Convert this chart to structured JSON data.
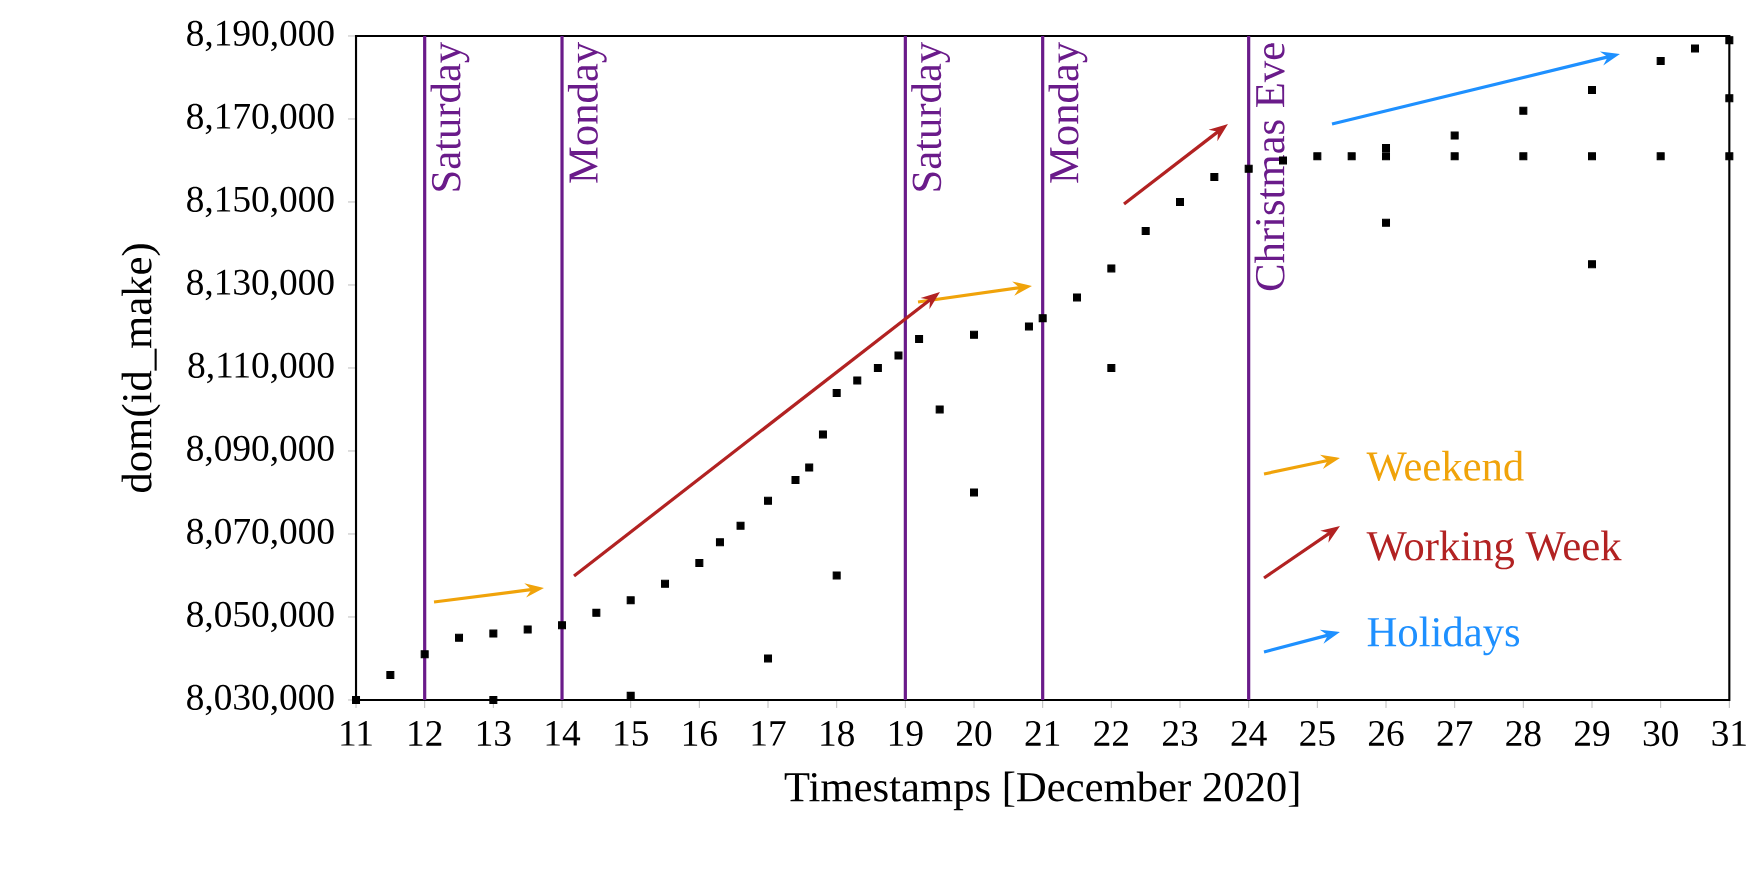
{
  "chart_data": {
    "type": "scatter",
    "xlabel": "Timestamps [December 2020]",
    "ylabel": "dom(id_make)",
    "xlim": [
      11,
      31
    ],
    "ylim": [
      8030000,
      8190000
    ],
    "xticks": [
      11,
      12,
      13,
      14,
      15,
      16,
      17,
      18,
      19,
      20,
      21,
      22,
      23,
      24,
      25,
      26,
      27,
      28,
      29,
      30,
      31
    ],
    "yticks": [
      {
        "value": 8030000,
        "label": "8,030,000"
      },
      {
        "value": 8050000,
        "label": "8,050,000"
      },
      {
        "value": 8070000,
        "label": "8,070,000"
      },
      {
        "value": 8090000,
        "label": "8,090,000"
      },
      {
        "value": 8110000,
        "label": "8,110,000"
      },
      {
        "value": 8130000,
        "label": "8,130,000"
      },
      {
        "value": 8150000,
        "label": "8,150,000"
      },
      {
        "value": 8170000,
        "label": "8,170,000"
      },
      {
        "value": 8190000,
        "label": "8,190,000"
      }
    ],
    "grid": false,
    "marker": "square",
    "annotations": [
      "Weekend",
      "Working Week",
      "Holidays"
    ],
    "ref_lines": [
      {
        "axis": "x",
        "value": 12,
        "label": "Saturday",
        "color": "#6a1b8a"
      },
      {
        "axis": "x",
        "value": 14,
        "label": "Monday",
        "color": "#6a1b8a"
      },
      {
        "axis": "x",
        "value": 19,
        "label": "Saturday",
        "color": "#6a1b8a"
      },
      {
        "axis": "x",
        "value": 21,
        "label": "Monday",
        "color": "#6a1b8a"
      },
      {
        "axis": "x",
        "value": 24,
        "label": "Christmas Eve",
        "color": "#6a1b8a"
      }
    ],
    "series": [
      {
        "color": "#000000",
        "x": [
          11.0,
          11.5,
          12.0,
          12.5,
          13.0,
          13.5,
          14.0,
          14.5,
          15.0,
          15.5,
          16.0,
          16.3,
          16.6,
          17.0,
          17.4,
          17.6,
          17.8,
          18.0,
          18.3,
          18.6,
          18.9,
          19.2,
          20.0,
          20.8,
          21.0,
          21.5,
          22.0,
          22.5,
          23.0,
          23.5,
          24.0,
          24.5,
          25.0,
          26.0,
          27.0,
          28.0,
          29.0,
          30.0,
          30.5,
          31.0,
          13.0,
          15.0,
          17.0,
          19.5,
          22.0,
          25.5,
          26.0,
          27.0,
          28.0,
          29.0,
          30.0,
          31.0,
          18.0,
          20.0,
          26.0,
          29.0,
          31.0
        ],
        "values": [
          8030000,
          8036000,
          8041000,
          8045000,
          8046000,
          8047000,
          8048000,
          8051000,
          8054000,
          8058000,
          8063000,
          8068000,
          8072000,
          8078000,
          8083000,
          8086000,
          8094000,
          8104000,
          8107000,
          8110000,
          8113000,
          8117000,
          8118000,
          8120000,
          8122000,
          8127000,
          8134000,
          8143000,
          8150000,
          8156000,
          8158000,
          8160000,
          8161000,
          8163000,
          8166000,
          8172000,
          8177000,
          8184000,
          8187000,
          8189000,
          8030000,
          8031000,
          8040000,
          8100000,
          8110000,
          8161000,
          8161000,
          8161000,
          8161000,
          8161000,
          8161000,
          8161000,
          8060000,
          8080000,
          8145000,
          8135000,
          8175000
        ]
      }
    ]
  }
}
